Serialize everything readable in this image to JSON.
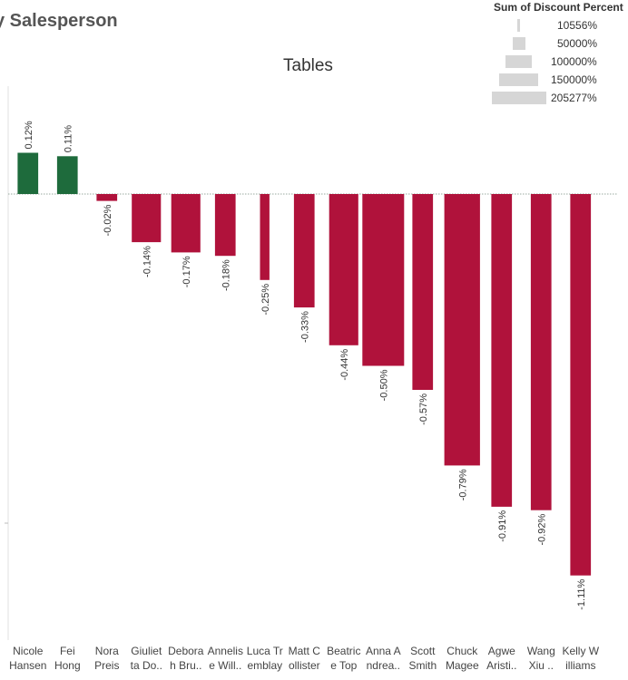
{
  "page_title": "y Salesperson",
  "legend": {
    "title": "Sum of Discount Percent",
    "items": [
      "10556%",
      "50000%",
      "100000%",
      "150000%",
      "205277%"
    ]
  },
  "colors": {
    "positive": "#1e6b3c",
    "negative": "#b0123b",
    "legend": "#d6d6d6",
    "zero_line": "#9aa9a0"
  },
  "chart_data": {
    "type": "bar",
    "title": "Tables",
    "xlabel": "",
    "ylabel": "",
    "categories": [
      "Nicole\nHansen",
      "Fei\nHong",
      "Nora\nPreis",
      "Giuliet\nta Do..",
      "Debora\nh Bru..",
      "Annelis\ne Will..",
      "Luca Tr\nemblay",
      "Matt C\nollister",
      "Beatric\ne Top",
      "Anna A\nndrea..",
      "Scott\nSmith",
      "Chuck\nMagee",
      "Agwe\nAristi..",
      "Wang\nXiu ..",
      "Kelly W\nilliams"
    ],
    "values": [
      0.12,
      0.11,
      -0.02,
      -0.14,
      -0.17,
      -0.18,
      -0.25,
      -0.33,
      -0.44,
      -0.5,
      -0.57,
      -0.79,
      -0.91,
      -0.92,
      -1.11
    ],
    "data_labels": [
      "0.12%",
      "0.11%",
      "-0.02%",
      "-0.14%",
      "-0.17%",
      "-0.18%",
      "-0.25%",
      "-0.33%",
      "-0.44%",
      "-0.50%",
      "-0.57%",
      "-0.79%",
      "-0.91%",
      "-0.92%",
      "-1.11%"
    ],
    "size_values": [
      50000,
      50000,
      50000,
      100000,
      100000,
      50000,
      10556,
      50000,
      100000,
      205277,
      50000,
      150000,
      50000,
      50000,
      50000
    ],
    "size_legend": "Sum of Discount Percent",
    "ylim": [
      -1.28,
      0.3
    ],
    "grid": false,
    "legend_position": "top-right"
  }
}
